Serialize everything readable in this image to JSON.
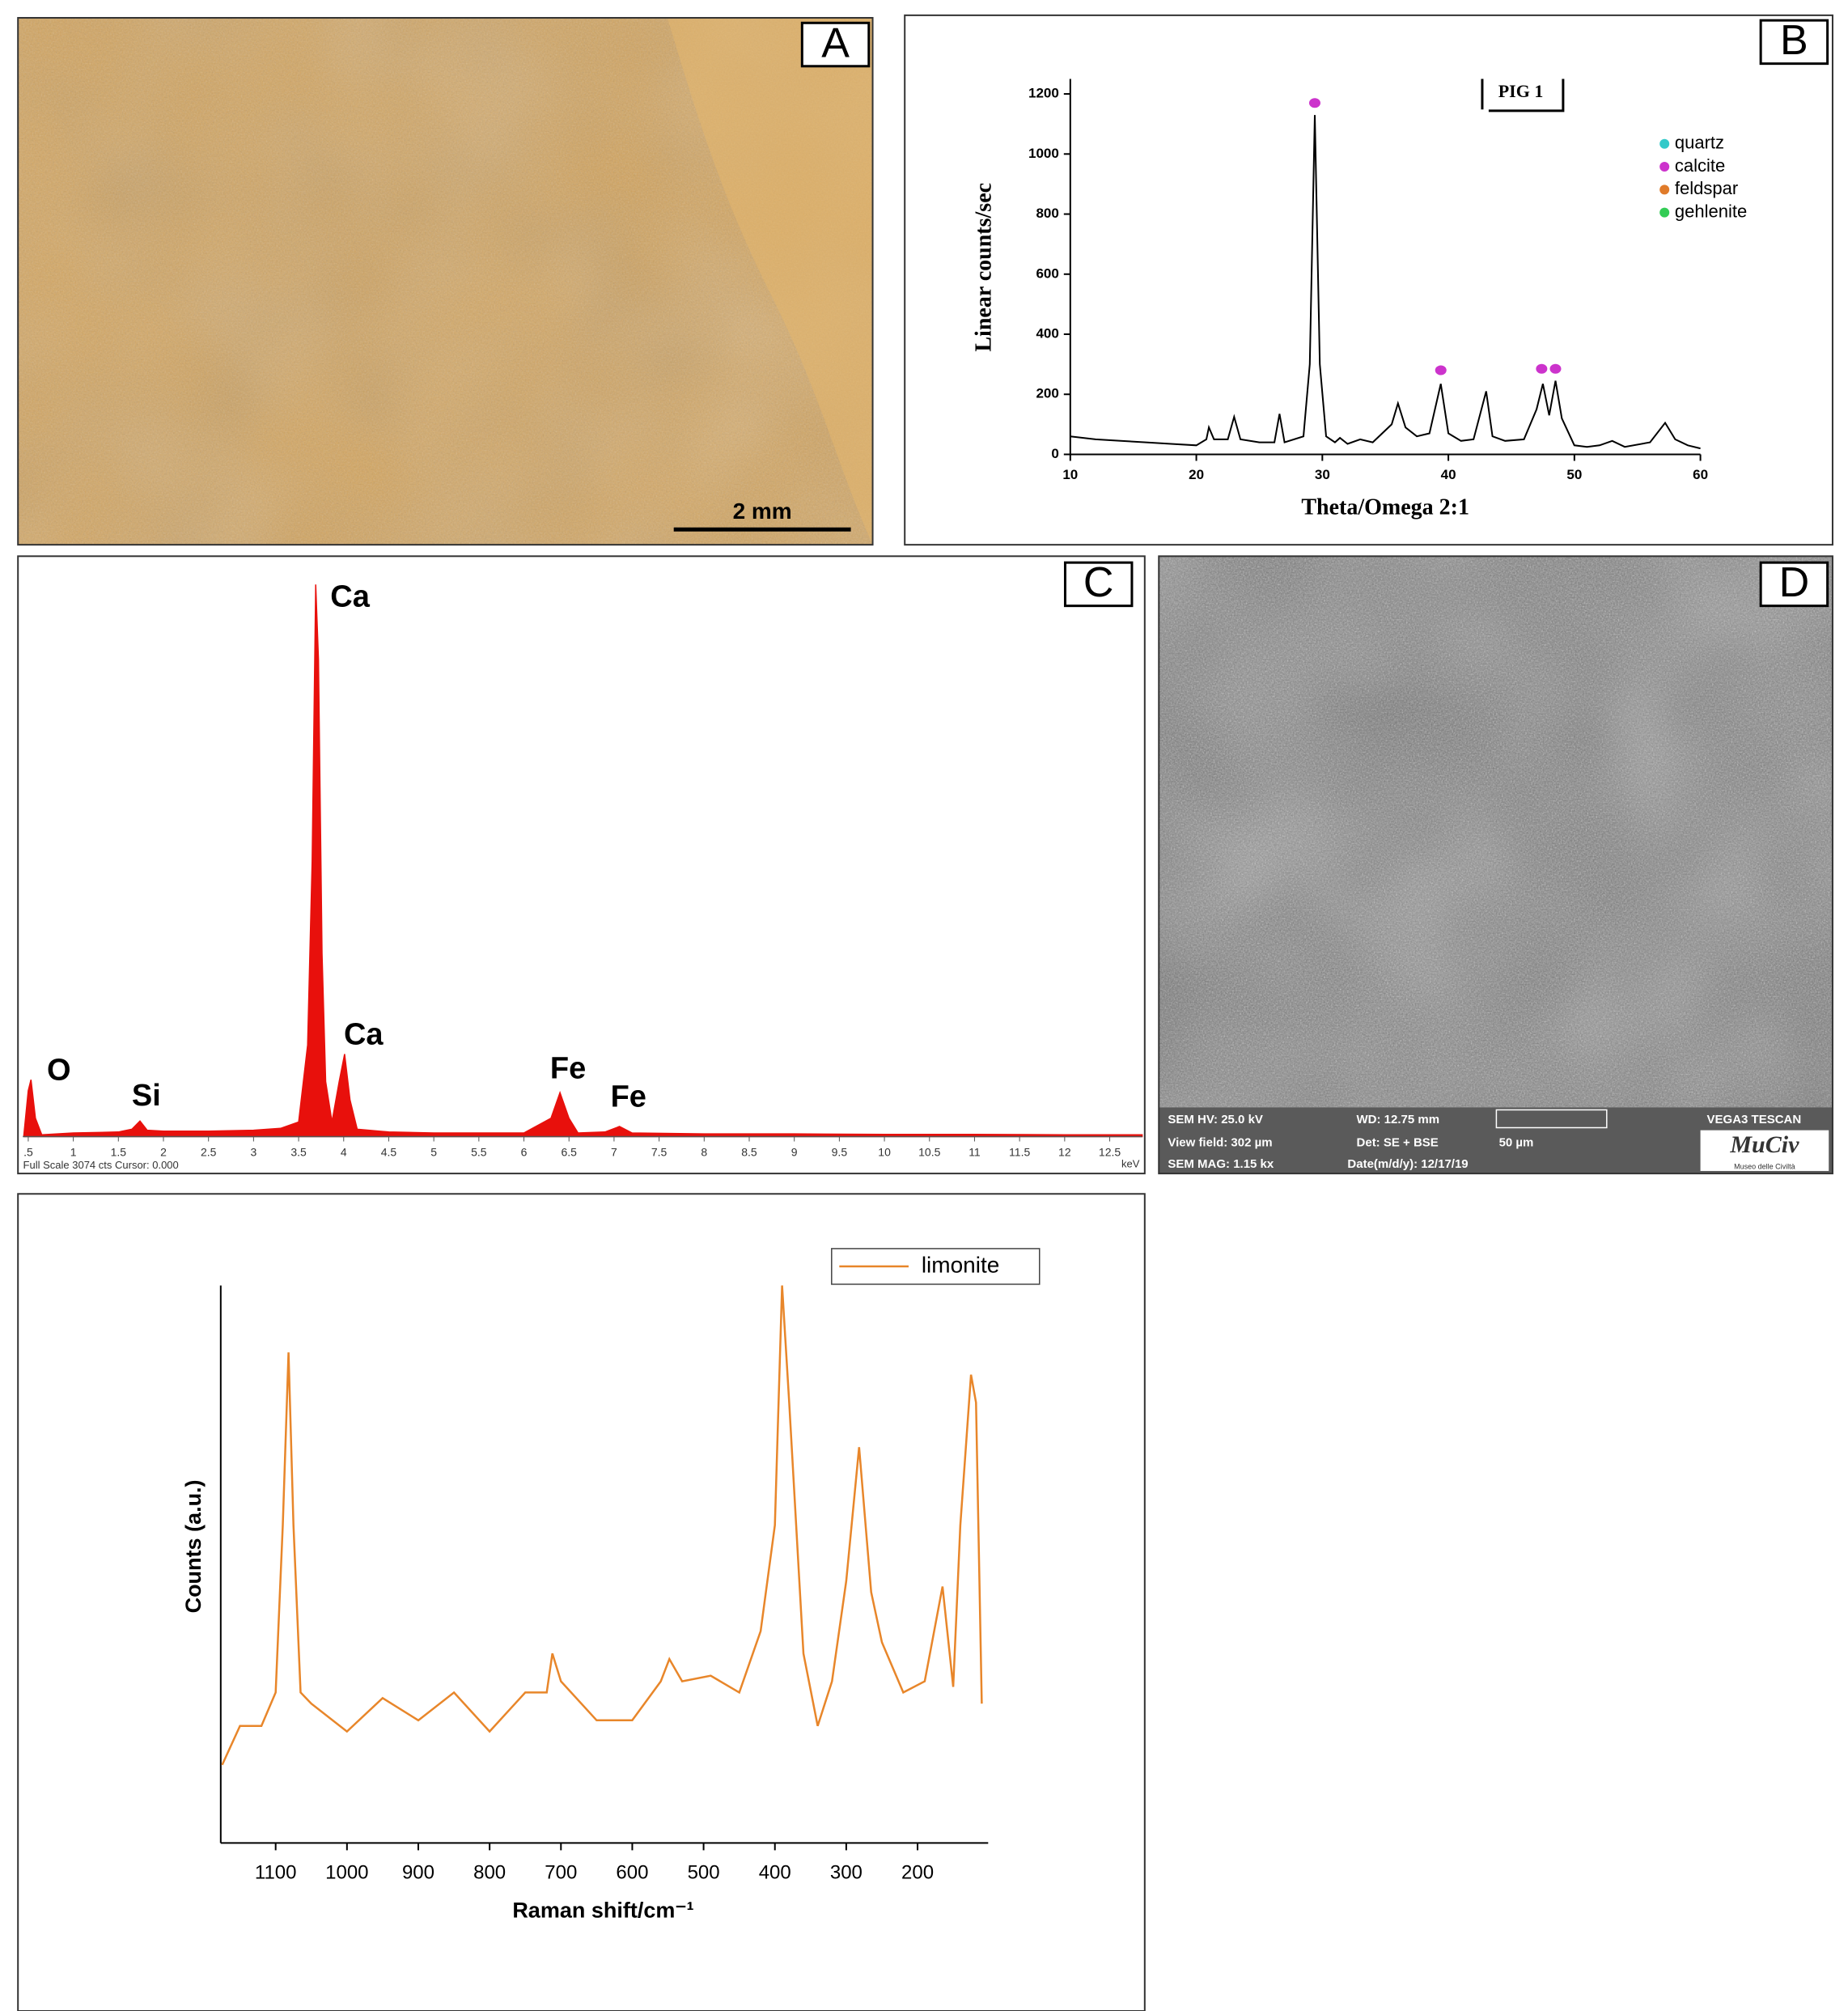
{
  "panels": {
    "labels": [
      "A",
      "B",
      "C",
      "D"
    ]
  },
  "photo": {
    "scale_bar": "2 mm"
  },
  "sem": {
    "info": [
      "SEM HV: 25.0 kV",
      "WD: 12.75 mm",
      "VEGA3 TESCAN",
      "View field: 302 µm",
      "Det: SE + BSE",
      "50 µm",
      "SEM MAG: 1.15 kx",
      "Date(m/d/y): 12/17/19"
    ],
    "logo": "MuCiv",
    "logo_subtitle": "Museo delle Civiltà"
  },
  "chart_data": [
    {
      "type": "line",
      "title": "PIG 1",
      "xlabel": "Theta/Omega 2:1",
      "ylabel": "Linear counts/sec",
      "color": "#000000",
      "x": [
        10,
        12,
        14,
        16,
        18,
        20,
        20.8,
        21,
        21.4,
        22.5,
        23,
        23.5,
        25,
        26.2,
        26.6,
        27,
        28.5,
        29,
        29.4,
        29.8,
        30.3,
        31,
        31.4,
        32,
        33,
        34,
        35.5,
        36,
        36.6,
        37.5,
        38.5,
        39.4,
        40,
        41,
        42,
        43,
        43.5,
        44.5,
        46,
        47,
        47.5,
        48,
        48.5,
        49,
        50,
        51,
        52,
        53,
        54,
        56,
        57.2,
        58,
        59,
        60
      ],
      "values": [
        60,
        50,
        45,
        40,
        35,
        30,
        50,
        90,
        50,
        50,
        125,
        50,
        40,
        40,
        135,
        40,
        60,
        300,
        1130,
        300,
        60,
        40,
        55,
        35,
        50,
        40,
        100,
        170,
        90,
        60,
        70,
        235,
        70,
        45,
        50,
        210,
        60,
        45,
        50,
        150,
        235,
        130,
        245,
        120,
        30,
        25,
        30,
        45,
        25,
        40,
        105,
        50,
        30,
        20
      ],
      "series": [
        {
          "name": "quartz",
          "color": "#33c9c9",
          "x": [],
          "values": []
        },
        {
          "name": "calcite",
          "color": "#cc33cc",
          "x": [
            29.4,
            39.4,
            47.4,
            48.5
          ],
          "values": [
            1170,
            280,
            285,
            285
          ]
        },
        {
          "name": "feldspar",
          "color": "#e07b2a",
          "x": [],
          "values": []
        },
        {
          "name": "gehlenite",
          "color": "#33cc55",
          "x": [],
          "values": []
        }
      ],
      "xlim": [
        10,
        60
      ],
      "xticks": [
        10,
        20,
        30,
        40,
        50,
        60
      ],
      "ylim": [
        0,
        1250
      ],
      "yticks": [
        0,
        200,
        400,
        600,
        800,
        1000,
        1200
      ]
    },
    {
      "type": "area",
      "xlabel": "keV",
      "footer": "Full Scale 3074 cts Cursor: 0.000",
      "color": "#e8100c",
      "x": [
        0.45,
        0.5,
        0.53,
        0.58,
        0.65,
        1,
        1.5,
        1.65,
        1.74,
        1.82,
        2,
        2.5,
        3,
        3.3,
        3.5,
        3.6,
        3.65,
        3.69,
        3.72,
        3.76,
        3.8,
        3.87,
        3.95,
        4.01,
        4.07,
        4.15,
        4.5,
        5,
        5.5,
        6,
        6.3,
        6.4,
        6.5,
        6.6,
        6.9,
        7.06,
        7.2,
        8,
        9,
        10,
        11,
        12,
        12.86
      ],
      "values": [
        0,
        250,
        310,
        100,
        10,
        20,
        25,
        40,
        85,
        35,
        30,
        30,
        35,
        45,
        80,
        500,
        1500,
        3010,
        2600,
        1000,
        300,
        80,
        300,
        450,
        200,
        40,
        25,
        20,
        20,
        20,
        100,
        240,
        100,
        20,
        25,
        55,
        20,
        15,
        15,
        12,
        12,
        10,
        10
      ],
      "annotations": [
        {
          "text": "O",
          "x": 0.84,
          "y": 354
        },
        {
          "text": "Si",
          "x": 1.81,
          "y": 215
        },
        {
          "text": "Ca",
          "x": 4.07,
          "y": 2935
        },
        {
          "text": "Ca",
          "x": 4.22,
          "y": 548
        },
        {
          "text": "Fe",
          "x": 6.49,
          "y": 361
        },
        {
          "text": "Fe",
          "x": 7.16,
          "y": 208
        }
      ],
      "xlim": [
        0.44,
        12.86
      ],
      "xticks": [
        {
          "value": 0.5,
          "label": ".5"
        },
        1,
        1.5,
        2,
        2.5,
        3,
        3.5,
        4,
        4.5,
        5,
        5.5,
        6,
        6.5,
        7,
        7.5,
        8,
        8.5,
        9,
        9.5,
        10,
        10.5,
        11,
        11.5,
        12,
        12.5
      ],
      "ylim": [
        0,
        3074
      ]
    },
    {
      "type": "line",
      "xlabel": "Raman shift/cm⁻¹",
      "ylabel": "Counts (a.u.)",
      "legend": "top-right",
      "series": [
        {
          "name": "limonite",
          "color": "#e8862a",
          "x": [
            1175,
            1150,
            1120,
            1100,
            1090,
            1082,
            1075,
            1065,
            1050,
            1000,
            950,
            900,
            850,
            800,
            750,
            720,
            712,
            700,
            650,
            600,
            560,
            548,
            530,
            490,
            450,
            420,
            400,
            390,
            380,
            360,
            340,
            320,
            300,
            282,
            265,
            250,
            220,
            190,
            165,
            150,
            140,
            125,
            118,
            110
          ],
          "values": [
            14,
            21,
            21,
            27,
            57,
            88,
            57,
            27,
            25,
            20,
            26,
            22,
            27,
            20,
            27,
            27,
            34,
            29,
            22,
            22,
            29,
            33,
            29,
            30,
            27,
            38,
            57,
            100,
            79,
            34,
            21,
            29,
            47,
            71,
            45,
            36,
            27,
            29,
            46,
            28,
            57,
            84,
            79,
            25
          ]
        }
      ],
      "xlim": [
        1177,
        101
      ],
      "xticks": [
        1100,
        1000,
        900,
        800,
        700,
        600,
        500,
        400,
        300,
        200
      ],
      "ylim": [
        0,
        100
      ]
    }
  ]
}
